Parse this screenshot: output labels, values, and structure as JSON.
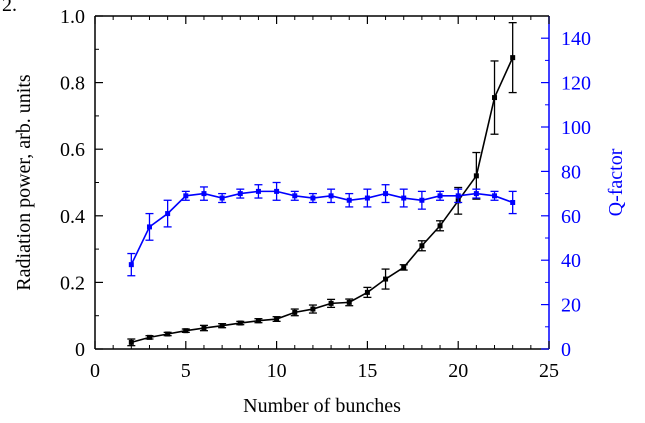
{
  "panel_label": "2.",
  "chart_data": {
    "type": "line",
    "title": "",
    "xlabel": "Number of bunches",
    "ylabel_left": "Radiation power, arb. units",
    "ylabel_right": "Q-factor",
    "xlim": [
      0,
      25
    ],
    "ylim_left": [
      0,
      1.0
    ],
    "ylim_right": [
      0,
      150
    ],
    "x_ticks": [
      "0",
      "5",
      "10",
      "15",
      "20",
      "25"
    ],
    "y_left_ticks": [
      "0",
      "0.2",
      "0.4",
      "0.6",
      "0.8",
      "1.0"
    ],
    "y_right_ticks": [
      "0",
      "20",
      "40",
      "60",
      "80",
      "100",
      "120",
      "140"
    ],
    "grid": false,
    "legend": "none",
    "series": [
      {
        "axis": "left",
        "color": "#000000",
        "x": [
          2,
          3,
          4,
          5,
          6,
          7,
          8,
          9,
          10,
          11,
          12,
          13,
          14,
          15,
          16,
          17,
          18,
          19,
          20,
          21,
          22,
          23
        ],
        "y": [
          0.02,
          0.035,
          0.045,
          0.055,
          0.063,
          0.07,
          0.078,
          0.085,
          0.09,
          0.11,
          0.12,
          0.137,
          0.14,
          0.17,
          0.21,
          0.245,
          0.31,
          0.37,
          0.445,
          0.52,
          0.755,
          0.875
        ],
        "err": [
          0.01,
          0.005,
          0.005,
          0.005,
          0.008,
          0.006,
          0.005,
          0.006,
          0.007,
          0.01,
          0.012,
          0.012,
          0.01,
          0.015,
          0.03,
          0.008,
          0.015,
          0.015,
          0.04,
          0.07,
          0.11,
          0.105
        ]
      },
      {
        "axis": "right",
        "color": "#0000ff",
        "x": [
          2,
          3,
          4,
          5,
          6,
          7,
          8,
          9,
          10,
          11,
          12,
          13,
          14,
          15,
          16,
          17,
          18,
          19,
          20,
          21,
          22,
          23
        ],
        "y": [
          38,
          55,
          61,
          69,
          70,
          68,
          70,
          71,
          71,
          69,
          68,
          69,
          67,
          68,
          70,
          68,
          67,
          69,
          69,
          70,
          69,
          66
        ],
        "err": [
          5,
          6,
          6,
          2,
          3,
          2,
          2,
          3,
          4,
          2,
          2,
          3,
          3,
          4,
          4,
          4,
          4,
          2,
          3,
          2,
          2,
          5
        ]
      }
    ]
  }
}
